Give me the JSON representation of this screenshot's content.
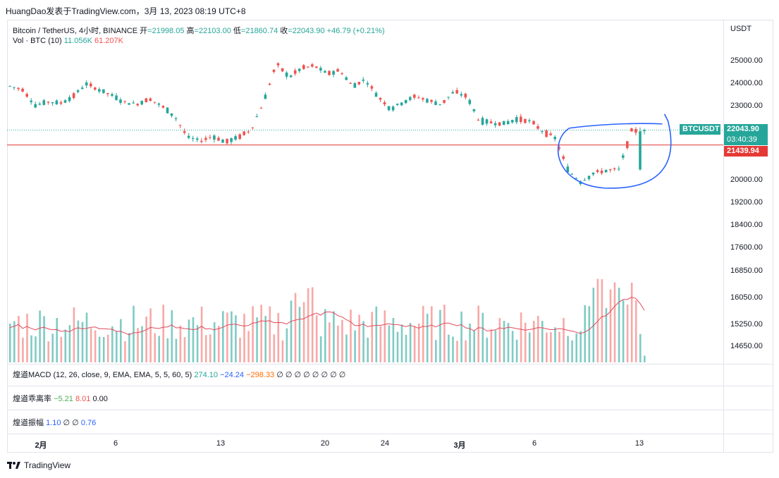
{
  "header": {
    "text": "HuangDao发表于TradingView.com，3月 13, 2023 08:19 UTC+8"
  },
  "legend": {
    "symbol": "Bitcoin / TetherUS, 4小时, BINANCE",
    "open_label": "开",
    "open": "=21998.05",
    "high_label": "高",
    "high": "=22103.00",
    "low_label": "低",
    "low": "=21860.74",
    "close_label": "收",
    "close": "=22043.90",
    "change": "+46.79 (+0.21%)",
    "vol_label": "Vol · BTC (10)",
    "vol_value": "11.056K",
    "vol_ma": "61.207K"
  },
  "indicators": {
    "macd": {
      "name": "煌道MACD (12, 26, close, 9, EMA, EMA, 5, 5, 60, 5)",
      "v1": "274.10",
      "v2": "−24.24",
      "v3": "−298.33",
      "rest": "∅ ∅ ∅ ∅ ∅ ∅ ∅ ∅"
    },
    "deviation": {
      "name": "煌道乖离率",
      "v1": "−5.21",
      "v2": "8.01",
      "v3": "0.00"
    },
    "amplitude": {
      "name": "煌道振幅",
      "v1": "1.10",
      "rest": "∅ ∅",
      "v2": "0.76"
    }
  },
  "price_axis": {
    "unit": "USDT",
    "ticks": [
      "25000.00",
      "24000.00",
      "23000.00",
      "20000.00",
      "19200.00",
      "18400.00",
      "17600.00",
      "16850.00",
      "16050.00",
      "15250.00",
      "14650.00"
    ]
  },
  "tags": {
    "symbol": "BTCUSDT",
    "price": "22043.90",
    "countdown": "03:40:39",
    "line_price": "21439.94"
  },
  "time_axis": [
    {
      "label": "2月",
      "bold": true
    },
    {
      "label": "6",
      "bold": false
    },
    {
      "label": "13",
      "bold": false
    },
    {
      "label": "20",
      "bold": false
    },
    {
      "label": "24",
      "bold": false
    },
    {
      "label": "3月",
      "bold": true
    },
    {
      "label": "6",
      "bold": false
    },
    {
      "label": "13",
      "bold": false
    }
  ],
  "branding": "TradingView",
  "colors": {
    "up": "#26a69a",
    "down": "#ef5350",
    "vol_ma": "#e04a5c",
    "annotation": "#2962ff",
    "hline": "#e53935"
  },
  "chart_data": {
    "type": "candlestick",
    "symbol": "BTCUSDT",
    "interval": "4h",
    "ohlc_points_approx": [
      [
        23450,
        23980,
        23300,
        23900
      ],
      [
        23900,
        24010,
        23700,
        23750
      ],
      [
        23750,
        23800,
        22750,
        23050
      ],
      [
        23050,
        23300,
        22950,
        23200
      ],
      [
        23200,
        23250,
        22980,
        23150
      ],
      [
        23150,
        23550,
        23100,
        23450
      ],
      [
        23450,
        24200,
        23400,
        24000
      ],
      [
        24000,
        24100,
        23650,
        23750
      ],
      [
        23750,
        23850,
        23350,
        23500
      ],
      [
        23500,
        23600,
        23150,
        23200
      ],
      [
        23200,
        23350,
        22950,
        23100
      ],
      [
        23100,
        23450,
        23050,
        23350
      ],
      [
        23350,
        23400,
        22950,
        23000
      ],
      [
        23000,
        23150,
        22450,
        22600
      ],
      [
        22600,
        22750,
        21600,
        21750
      ],
      [
        21750,
        21850,
        21400,
        21600
      ],
      [
        21600,
        21900,
        21500,
        21800
      ],
      [
        21800,
        21900,
        21500,
        21550
      ],
      [
        21550,
        21900,
        21450,
        21750
      ],
      [
        21750,
        22150,
        21700,
        22050
      ],
      [
        22050,
        23300,
        22000,
        23200
      ],
      [
        23200,
        25200,
        23100,
        24900
      ],
      [
        24900,
        25050,
        23900,
        24300
      ],
      [
        24300,
        24850,
        24150,
        24700
      ],
      [
        24700,
        25100,
        24500,
        24800
      ],
      [
        24800,
        25100,
        24100,
        24450
      ],
      [
        24450,
        24800,
        24300,
        24600
      ],
      [
        24600,
        24800,
        23800,
        23900
      ],
      [
        23900,
        24400,
        23700,
        24200
      ],
      [
        24200,
        24300,
        23350,
        23450
      ],
      [
        23450,
        23550,
        22750,
        22900
      ],
      [
        22900,
        23300,
        22750,
        23200
      ],
      [
        23200,
        23600,
        23100,
        23450
      ],
      [
        23450,
        23600,
        23100,
        23250
      ],
      [
        23250,
        23550,
        22950,
        23100
      ],
      [
        23100,
        23900,
        23050,
        23650
      ],
      [
        23650,
        23800,
        23300,
        23450
      ],
      [
        23450,
        23500,
        22000,
        22400
      ],
      [
        22400,
        22550,
        22250,
        22350
      ],
      [
        22350,
        22500,
        22200,
        22300
      ],
      [
        22300,
        22650,
        22250,
        22500
      ],
      [
        22500,
        22600,
        22300,
        22400
      ],
      [
        22400,
        22450,
        21900,
        22000
      ],
      [
        22000,
        22100,
        21500,
        21700
      ],
      [
        21700,
        21850,
        20050,
        20400
      ],
      [
        20400,
        20600,
        19800,
        19950
      ],
      [
        19950,
        20400,
        19850,
        20300
      ],
      [
        20300,
        20550,
        20000,
        20400
      ],
      [
        20400,
        20600,
        20250,
        20450
      ],
      [
        20450,
        22150,
        20400,
        21998
      ],
      [
        21998,
        22103,
        21860,
        22043
      ]
    ],
    "last_close": 22043.9,
    "horizontal_line": 21439.94,
    "volume_ma_period": 10,
    "annotation": "blue hand-drawn ellipse around final drop and recovery"
  }
}
